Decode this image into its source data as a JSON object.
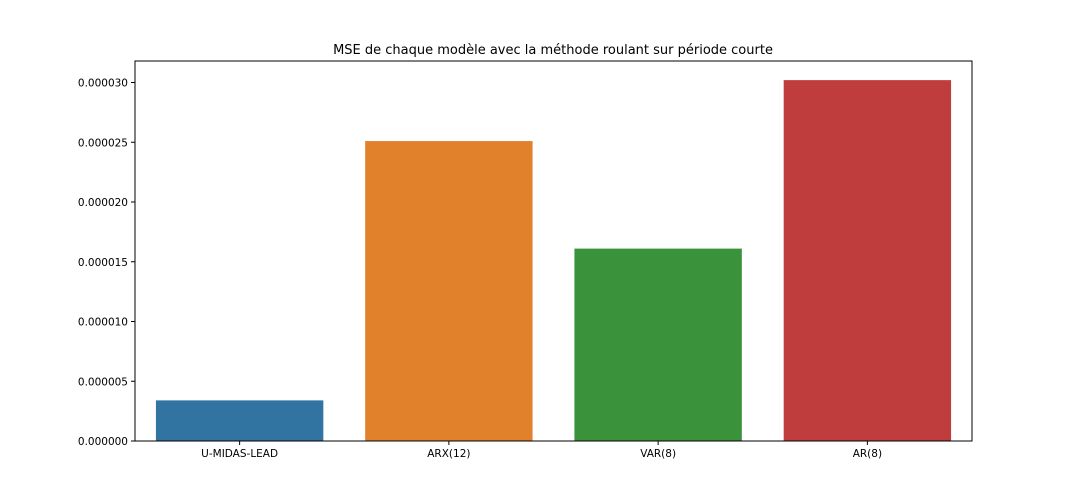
{
  "chart_data": {
    "type": "bar",
    "title": "MSE de chaque modèle avec la méthode roulant sur période courte",
    "xlabel": "",
    "ylabel": "",
    "categories": [
      "U-MIDAS-LEAD",
      "ARX(12)",
      "VAR(8)",
      "AR(8)"
    ],
    "values": [
      3.4e-06,
      2.51e-05,
      1.61e-05,
      3.02e-05
    ],
    "colors": [
      "#3274a1",
      "#e1812c",
      "#3a923a",
      "#c03d3e"
    ],
    "ylim": [
      0,
      3.18e-05
    ],
    "yticks": [
      0,
      5e-06,
      1e-05,
      1.5e-05,
      2e-05,
      2.5e-05,
      3e-05
    ],
    "ytick_labels": [
      "0.000000",
      "0.000005",
      "0.000010",
      "0.000015",
      "0.000020",
      "0.000025",
      "0.000030"
    ],
    "grid": false,
    "legend": "none"
  }
}
